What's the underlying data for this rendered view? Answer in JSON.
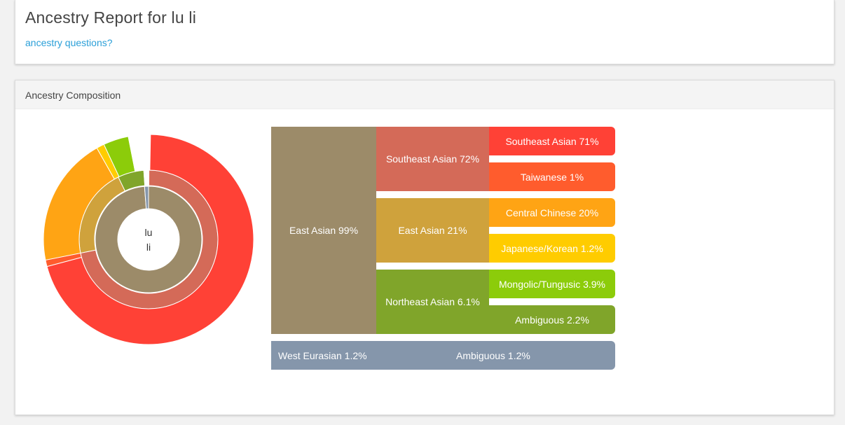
{
  "header": {
    "title": "Ancestry Report for lu li",
    "link": "ancestry questions?"
  },
  "panel": {
    "title": "Ancestry Composition"
  },
  "center": {
    "line1": "lu",
    "line2": "li"
  },
  "colors": {
    "east_asian": "#9c8b69",
    "southeast_asian_group": "#d46a58",
    "southeast_asian": "#ff4136",
    "taiwanese": "#ff5c2d",
    "east_asian_sub": "#cfa23c",
    "central_chinese": "#ffa414",
    "japanese_korean": "#ffcc00",
    "northeast_asian": "#80a52a",
    "mongolic": "#8ccc0a",
    "ambiguous_ne": "#80a52a",
    "west_eurasian": "#8596ab"
  },
  "chart_data": {
    "type": "sunburst",
    "nodes": [
      {
        "label": "East Asian 99%",
        "value": 99,
        "children": [
          {
            "label": "Southeast Asian 72%",
            "value": 72,
            "children": [
              {
                "label": "Southeast Asian 71%",
                "value": 71
              },
              {
                "label": "Taiwanese 1%",
                "value": 1
              }
            ]
          },
          {
            "label": "East Asian 21%",
            "value": 21,
            "children": [
              {
                "label": "Central Chinese 20%",
                "value": 20
              },
              {
                "label": "Japanese/Korean 1.2%",
                "value": 1.2
              }
            ]
          },
          {
            "label": "Northeast Asian 6.1%",
            "value": 6.1,
            "children": [
              {
                "label": "Mongolic/Tungusic 3.9%",
                "value": 3.9
              },
              {
                "label": "Ambiguous 2.2%",
                "value": 2.2
              }
            ]
          }
        ]
      },
      {
        "label": "West Eurasian 1.2%",
        "value": 1.2,
        "children": [
          {
            "label": "Ambiguous 1.2%",
            "value": 1.2
          }
        ]
      }
    ]
  }
}
